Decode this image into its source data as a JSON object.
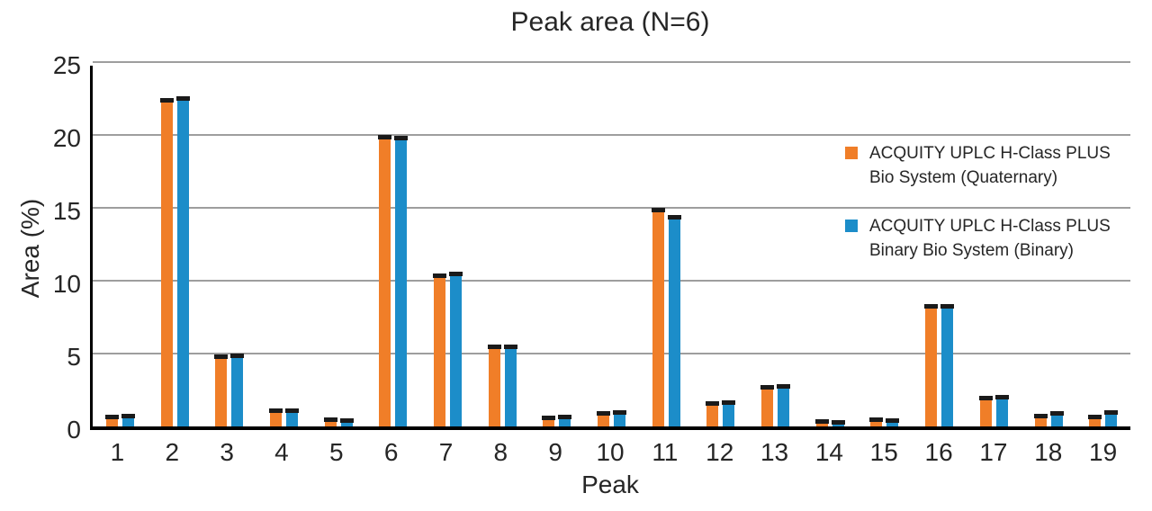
{
  "chart_data": {
    "type": "bar",
    "title": "Peak area (N=6)",
    "xlabel": "Peak",
    "ylabel": "Area (%)",
    "ylim": [
      0,
      25
    ],
    "yticks": [
      0,
      5,
      10,
      15,
      20,
      25
    ],
    "grid": true,
    "error_bars": true,
    "legend_position": "top-right-inside",
    "categories": [
      "1",
      "2",
      "3",
      "4",
      "5",
      "6",
      "7",
      "8",
      "9",
      "10",
      "11",
      "12",
      "13",
      "14",
      "15",
      "16",
      "17",
      "18",
      "19"
    ],
    "series": [
      {
        "name": "ACQUITY UPLC H-Class PLUS Bio System (Quaternary)",
        "legend_lines": [
          "ACQUITY UPLC H-Class PLUS",
          "Bio System (Quaternary)"
        ],
        "color": "#F07E28",
        "values": [
          0.7,
          22.4,
          4.8,
          1.1,
          0.5,
          19.9,
          10.4,
          5.5,
          0.6,
          0.9,
          14.9,
          1.6,
          2.7,
          0.35,
          0.5,
          8.3,
          2.0,
          0.75,
          0.7
        ]
      },
      {
        "name": "ACQUITY UPLC H-Class PLUS Binary Bio System (Binary)",
        "legend_lines": [
          "ACQUITY UPLC H-Class PLUS",
          "Binary Bio System (Binary)"
        ],
        "color": "#1C8DC9",
        "values": [
          0.75,
          22.5,
          4.9,
          1.1,
          0.45,
          19.8,
          10.5,
          5.5,
          0.7,
          1.0,
          14.4,
          1.65,
          2.8,
          0.3,
          0.45,
          8.3,
          2.05,
          0.9,
          1.0
        ]
      }
    ],
    "colors": {
      "gridline": "#9e9e9e",
      "axis": "#000000",
      "error_cap": "#1a1a1a",
      "text": "#262626"
    }
  }
}
